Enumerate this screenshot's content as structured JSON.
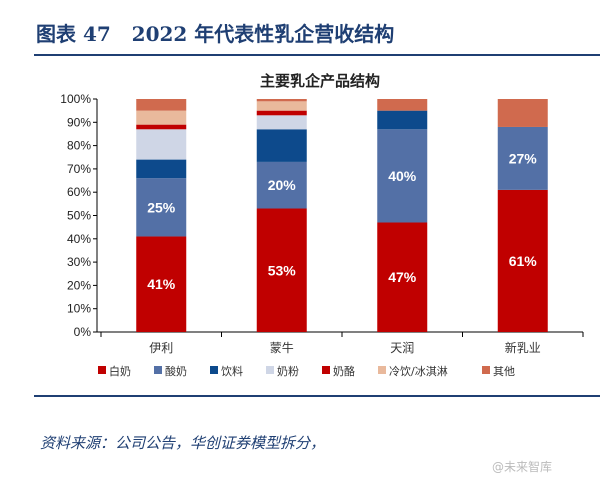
{
  "header": {
    "title": "图表 47   2022 年代表性乳企营收结构"
  },
  "footer": {
    "source": "资料来源：公司公告，华创证券模型拆分，",
    "watermark": "@未来智库"
  },
  "chart_data": {
    "type": "bar",
    "stacked": true,
    "title": "主要乳企产品结构",
    "categories": [
      "伊利",
      "蒙牛",
      "天润",
      "新乳业"
    ],
    "ylim": [
      0,
      100
    ],
    "yticks": [
      "0%",
      "10%",
      "20%",
      "30%",
      "40%",
      "50%",
      "60%",
      "70%",
      "80%",
      "90%",
      "100%"
    ],
    "legend_position": "bottom",
    "series": [
      {
        "name": "白奶",
        "color": "#c00000",
        "values": [
          41,
          53,
          47,
          61
        ],
        "labels": [
          "41%",
          "53%",
          "47%",
          "61%"
        ]
      },
      {
        "name": "酸奶",
        "color": "#5370a6",
        "values": [
          25,
          20,
          40,
          27
        ],
        "labels": [
          "25%",
          "20%",
          "40%",
          "27%"
        ]
      },
      {
        "name": "饮料",
        "color": "#0d4a8c",
        "values": [
          8,
          14,
          8,
          0
        ]
      },
      {
        "name": "奶粉",
        "color": "#cfd6e6",
        "values": [
          13,
          6,
          0,
          0
        ]
      },
      {
        "name": "奶酪",
        "color": "#c00000",
        "values": [
          2,
          2,
          0,
          0
        ]
      },
      {
        "name": "冷饮/冰淇淋",
        "color": "#e9b99c",
        "values": [
          6,
          4,
          0,
          0
        ]
      },
      {
        "name": "其他",
        "color": "#d06a4e",
        "values": [
          5,
          1,
          5,
          12
        ]
      }
    ]
  }
}
